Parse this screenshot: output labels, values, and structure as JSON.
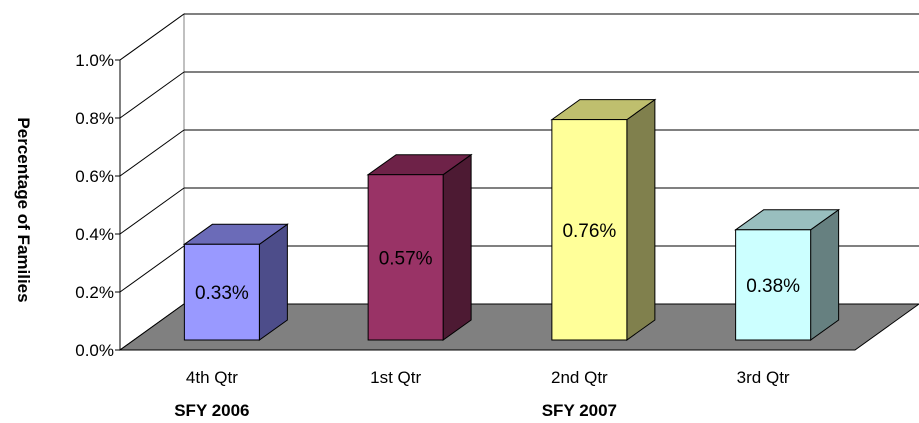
{
  "chart_data": {
    "type": "bar",
    "three_d": true,
    "ylabel": "Percentage of Families",
    "ylim": [
      0,
      1.0
    ],
    "yticks": [
      "0.0%",
      "0.2%",
      "0.4%",
      "0.6%",
      "0.8%",
      "1.0%"
    ],
    "grid": true,
    "categories": [
      "4th Qtr",
      "1st Qtr",
      "2nd Qtr",
      "3rd Qtr"
    ],
    "values": [
      0.33,
      0.57,
      0.76,
      0.38
    ],
    "data_labels": [
      "0.33%",
      "0.57%",
      "0.76%",
      "0.38%"
    ],
    "groups": [
      {
        "label": "SFY 2006",
        "categories": [
          "4th Qtr"
        ]
      },
      {
        "label": "SFY 2007",
        "categories": [
          "1st Qtr",
          "2nd Qtr",
          "3rd Qtr"
        ]
      }
    ],
    "colors": [
      {
        "front": "#9999ff",
        "top": "#6b6bb8",
        "side": "#4d4d8a"
      },
      {
        "front": "#993366",
        "top": "#6e2248",
        "side": "#4d1a33"
      },
      {
        "front": "#ffff99",
        "top": "#bfbf6e",
        "side": "#80804d"
      },
      {
        "front": "#ccffff",
        "top": "#99bfbf",
        "side": "#668080"
      }
    ],
    "floor_color": "#808080"
  }
}
